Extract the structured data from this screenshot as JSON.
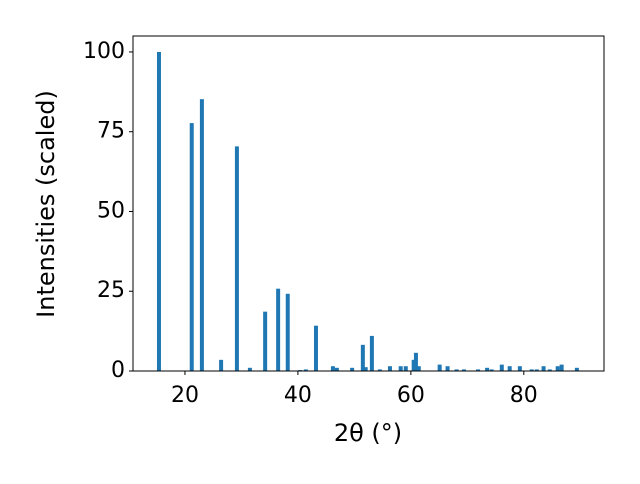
{
  "chart_data": {
    "type": "bar",
    "color": "#1f77b4",
    "xlabel": "2θ (°)",
    "ylabel": "Intensities (scaled)",
    "x": [
      15.4,
      21.2,
      23.0,
      26.4,
      29.2,
      31.5,
      34.2,
      36.5,
      38.2,
      40.4,
      41.4,
      43.2,
      46.2,
      46.9,
      49.6,
      51.5,
      52.0,
      53.1,
      54.5,
      56.3,
      58.2,
      59.1,
      60.5,
      60.9,
      61.4,
      65.1,
      66.5,
      68.1,
      69.4,
      71.9,
      73.5,
      74.3,
      76.1,
      77.5,
      79.3,
      81.4,
      82.3,
      83.5,
      84.6,
      86.0,
      86.7,
      89.4
    ],
    "values": [
      100,
      77.7,
      85.2,
      3.5,
      70.4,
      1,
      18.6,
      25.8,
      24.2,
      0.3,
      0.5,
      14.2,
      1.5,
      1,
      1,
      8.2,
      1.2,
      11,
      0.5,
      1.5,
      1.5,
      1.5,
      3.5,
      5.7,
      1.5,
      2,
      1.5,
      0.5,
      0.5,
      0.5,
      1,
      0.5,
      2,
      1.5,
      1.5,
      0.5,
      0.5,
      1.5,
      0.5,
      1.5,
      2,
      1
    ],
    "xlim": [
      10.8,
      94.2
    ],
    "ylim": [
      0,
      105
    ],
    "xticks": [
      20,
      40,
      60,
      80
    ],
    "yticks": [
      0,
      25,
      50,
      75,
      100
    ]
  }
}
